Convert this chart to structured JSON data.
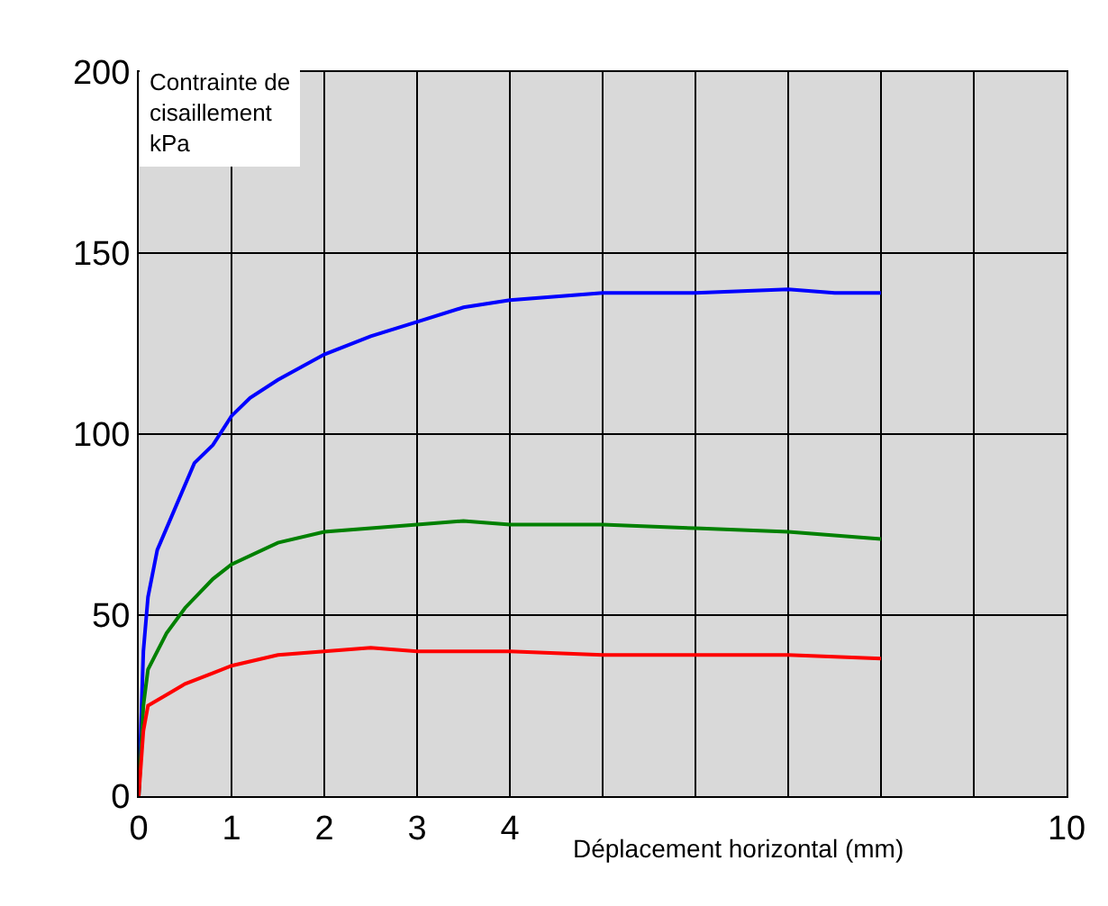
{
  "chart_data": {
    "type": "line",
    "xlabel": "Déplacement horizontal (mm)",
    "ylabel": "Contrainte de\ncisaillement\nkPa",
    "xlim": [
      0,
      10
    ],
    "ylim": [
      0,
      200
    ],
    "xticks": [
      0,
      1,
      2,
      3,
      4,
      {
        "value": 5,
        "label": null
      },
      {
        "value": 6,
        "label": null
      },
      {
        "value": 7,
        "label": null
      },
      {
        "value": 8,
        "label": null
      },
      {
        "value": 9,
        "label": null
      },
      10
    ],
    "yticks": [
      0,
      50,
      100,
      150,
      200
    ],
    "grid": true,
    "legend": false,
    "marker": "none",
    "line_style": "solid",
    "series": [
      {
        "color": "#0000ff",
        "x": [
          0,
          0.05,
          0.1,
          0.2,
          0.4,
          0.6,
          0.8,
          1.0,
          1.2,
          1.5,
          2,
          2.5,
          3,
          3.5,
          4,
          5,
          6,
          7,
          7.5,
          8
        ],
        "values": [
          0,
          40,
          55,
          68,
          80,
          92,
          97,
          105,
          110,
          115,
          122,
          127,
          131,
          135,
          137,
          139,
          139,
          140,
          139,
          139
        ]
      },
      {
        "color": "#008000",
        "x": [
          0,
          0.05,
          0.1,
          0.3,
          0.5,
          0.8,
          1,
          1.5,
          2,
          2.5,
          3,
          3.5,
          4,
          5,
          6,
          7,
          8
        ],
        "values": [
          0,
          25,
          35,
          45,
          52,
          60,
          64,
          70,
          73,
          74,
          75,
          76,
          75,
          75,
          74,
          73,
          71
        ]
      },
      {
        "color": "#ff0000",
        "x": [
          0,
          0.05,
          0.1,
          0.3,
          0.5,
          0.8,
          1,
          1.5,
          2,
          2.5,
          3,
          4,
          5,
          6,
          7,
          8
        ],
        "values": [
          0,
          18,
          25,
          28,
          31,
          34,
          36,
          39,
          40,
          41,
          40,
          40,
          39,
          39,
          39,
          38
        ]
      }
    ]
  }
}
